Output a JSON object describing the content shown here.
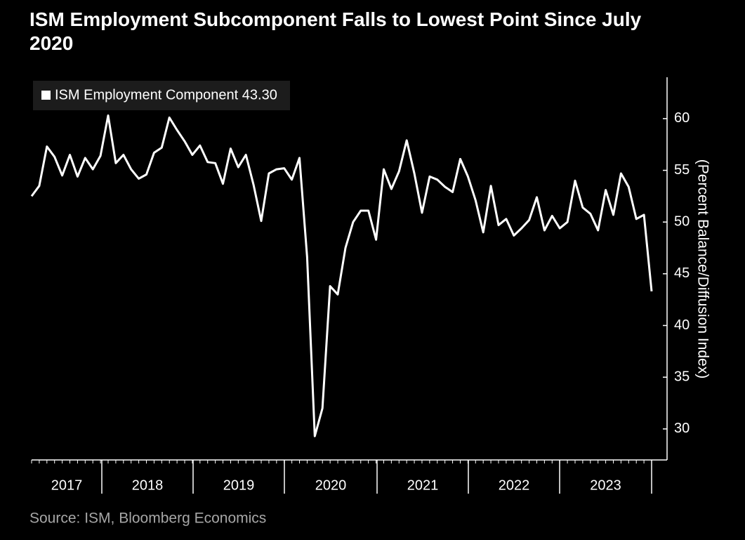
{
  "chart_data": {
    "type": "line",
    "title": "ISM Employment Subcomponent Falls to Lowest Point Since July 2020",
    "source": "Source: ISM, Bloomberg Economics",
    "y_label": "(Percent Balance/Diffusion Index)",
    "year_labels": [
      "2017",
      "2018",
      "2019",
      "2020",
      "2021",
      "2022",
      "2023"
    ],
    "series": [
      {
        "name": "ISM Employment Component 43.30",
        "color": "#ffffff",
        "values": [
          52.5,
          53.5,
          57.3,
          56.3,
          54.5,
          56.5,
          54.4,
          56.2,
          55.1,
          56.4,
          60.3,
          55.7,
          56.5,
          55.1,
          54.2,
          54.6,
          56.7,
          57.2,
          60.1,
          58.9,
          57.8,
          56.5,
          57.4,
          55.8,
          55.7,
          53.7,
          57.1,
          55.3,
          56.5,
          53.6,
          50.1,
          54.7,
          55.1,
          55.2,
          54.1,
          56.2,
          46.6,
          29.3,
          32.0,
          43.8,
          43.0,
          47.5,
          50.0,
          51.1,
          51.1,
          48.3,
          55.1,
          53.2,
          54.9,
          57.9,
          54.7,
          50.9,
          54.4,
          54.1,
          53.4,
          52.9,
          56.1,
          54.4,
          52.1,
          49.0,
          53.5,
          49.7,
          50.3,
          48.7,
          49.4,
          50.2,
          52.4,
          49.2,
          50.6,
          49.4,
          50.0,
          54.0,
          51.4,
          50.8,
          49.2,
          53.1,
          50.7,
          54.7,
          53.4,
          50.3,
          50.7,
          43.3
        ]
      }
    ],
    "ylim": [
      27,
      64
    ],
    "yticks": [
      30,
      35,
      40,
      45,
      50,
      55,
      60
    ]
  }
}
